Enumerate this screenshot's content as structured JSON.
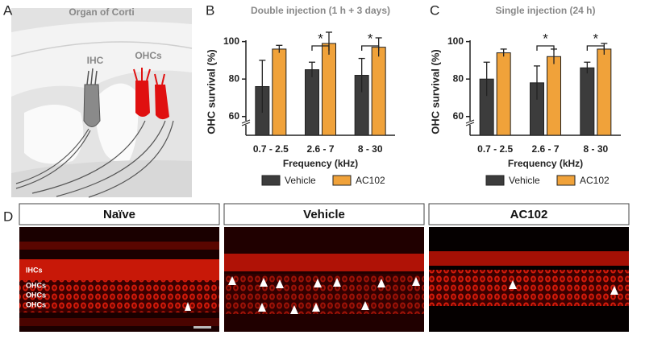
{
  "panelA": {
    "letter": "A",
    "title": "Organ of Corti",
    "labels": [
      "IHC",
      "OHCs"
    ]
  },
  "chart_data": [
    {
      "type": "bar",
      "letter": "B",
      "title": "Double injection (1 h + 3 days)",
      "y_label": "OHC survival (%)",
      "x_label": "Frequency (kHz)",
      "categories": [
        "0.7 - 2.5",
        "2.6 - 7",
        "8 - 30"
      ],
      "series": [
        {
          "name": "Vehicle",
          "color": "#3c3c3c",
          "values": [
            76,
            85,
            82
          ],
          "errors": [
            14,
            4,
            9
          ]
        },
        {
          "name": "AC102",
          "color": "#f0a23a",
          "values": [
            96,
            99,
            97
          ],
          "errors": [
            2,
            6,
            5
          ]
        }
      ],
      "significance": [
        null,
        "*",
        "*"
      ],
      "ylim": [
        50,
        105
      ],
      "yticks": [
        60,
        80,
        100
      ],
      "legend": "bottom"
    },
    {
      "type": "bar",
      "letter": "C",
      "title": "Single injection (24 h)",
      "y_label": "OHC survival (%)",
      "x_label": "Frequency (kHz)",
      "categories": [
        "0.7 - 2.5",
        "2.6 - 7",
        "8 - 30"
      ],
      "series": [
        {
          "name": "Vehicle",
          "color": "#3c3c3c",
          "values": [
            80,
            78,
            86
          ],
          "errors": [
            9,
            9,
            3
          ]
        },
        {
          "name": "AC102",
          "color": "#f0a23a",
          "values": [
            94,
            92,
            96
          ],
          "errors": [
            2,
            4,
            3
          ]
        }
      ],
      "significance": [
        null,
        "*",
        "*"
      ],
      "ylim": [
        50,
        105
      ],
      "yticks": [
        60,
        80,
        100
      ],
      "legend": "bottom"
    }
  ],
  "panelD": {
    "letter": "D",
    "images": [
      {
        "title": "Naïve",
        "labels": [
          "IHCs",
          "OHCs",
          "OHCs",
          "OHCs"
        ]
      },
      {
        "title": "Vehicle"
      },
      {
        "title": "AC102"
      }
    ]
  }
}
